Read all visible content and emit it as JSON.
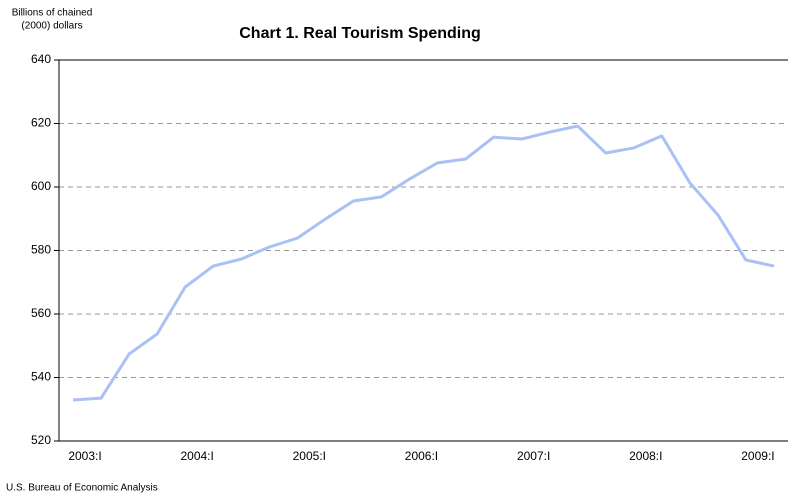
{
  "chart_data": {
    "type": "line",
    "title": "Chart 1. Real Tourism Spending",
    "y_label": [
      "Billions of chained",
      "(2000) dollars"
    ],
    "source": "U.S. Bureau of Economic Analysis",
    "categories": [
      "2003:I",
      null,
      null,
      null,
      "2004:I",
      null,
      null,
      null,
      "2005:I",
      null,
      null,
      null,
      "2006:I",
      null,
      null,
      null,
      "2007:I",
      null,
      null,
      null,
      "2008:I",
      null,
      null,
      null,
      "2009:I",
      null
    ],
    "series": [
      {
        "color": "#a9c1f5",
        "values": [
          532.9,
          533.5,
          547.4,
          553.7,
          568.5,
          575.1,
          577.3,
          581.1,
          583.9,
          589.9,
          595.6,
          596.9,
          602.5,
          607.6,
          608.8,
          615.7,
          615.1,
          617.3,
          619.2,
          610.7,
          612.3,
          616.1,
          601.3,
          591.2,
          577.0,
          575.1
        ]
      }
    ],
    "ylim": [
      520,
      640
    ],
    "yticks": [
      520,
      540,
      560,
      580,
      600,
      620,
      640
    ],
    "grid": true
  }
}
